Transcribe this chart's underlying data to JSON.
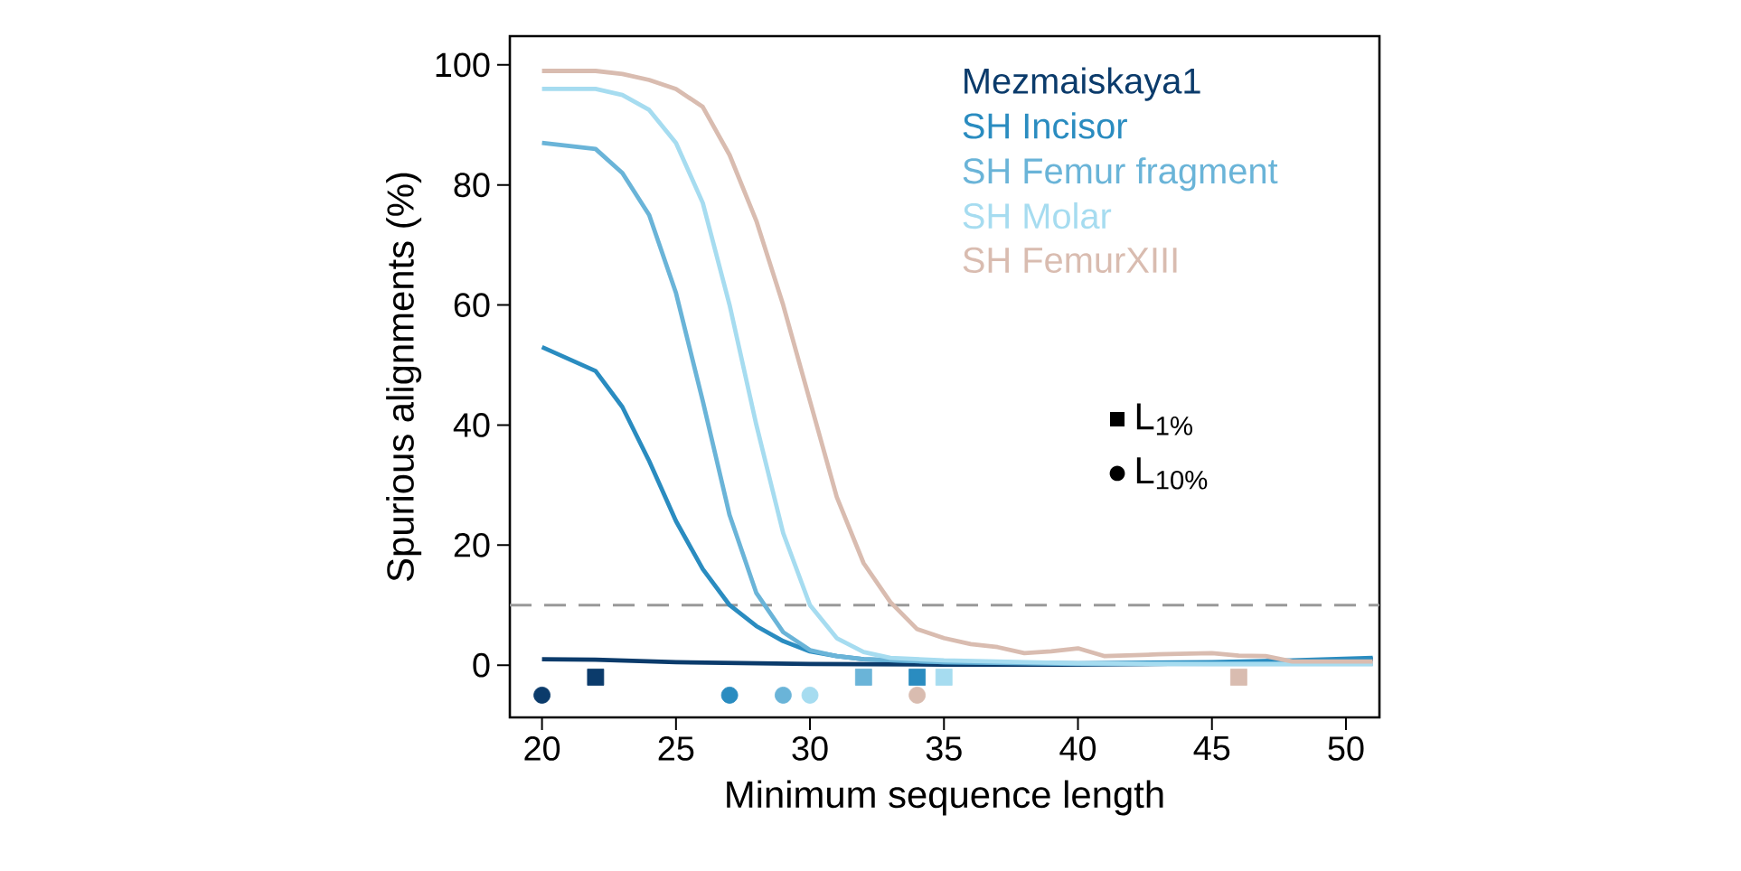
{
  "chart_data": {
    "type": "line",
    "xlabel": "Minimum sequence length",
    "ylabel": "Spurious alignments (%)",
    "xlim": [
      18.8,
      51.25
    ],
    "ylim": [
      -8.7,
      104.8
    ],
    "xticks": [
      20,
      25,
      30,
      35,
      40,
      45,
      50
    ],
    "yticks": [
      0,
      20,
      40,
      60,
      80,
      100
    ],
    "grid": false,
    "legend": "top right",
    "annotations": [
      "L$_{1%}$",
      "L$_{10%}$"
    ],
    "ref_lines": [
      {
        "axis": "y",
        "value": 10,
        "color": "#999999",
        "line_style": "dashed"
      }
    ],
    "series": [
      {
        "name": "Mezmaiskaya1",
        "color": "#0b3b6b",
        "x": [
          20,
          22,
          25,
          30,
          35,
          40,
          45,
          48,
          51
        ],
        "values": [
          1,
          0.9,
          0.5,
          0.2,
          0.1,
          0.1,
          0.3,
          0.6,
          1.0
        ]
      },
      {
        "name": "SH Incisor",
        "color": "#2a8cc0",
        "x": [
          20,
          22,
          23,
          24,
          25,
          26,
          27,
          28,
          29,
          30,
          31,
          32,
          35,
          40,
          45,
          48,
          51
        ],
        "values": [
          53,
          49,
          43,
          34,
          24,
          16,
          10,
          6.5,
          4,
          2.3,
          1.5,
          1,
          0.5,
          0.3,
          0.5,
          0.8,
          1.2
        ]
      },
      {
        "name": "SH Femur fragment",
        "color": "#6ab4d8",
        "x": [
          20,
          22,
          23,
          24,
          25,
          26,
          27,
          28,
          29,
          30,
          31,
          32,
          35,
          40,
          45,
          51
        ],
        "values": [
          87,
          86,
          82,
          75,
          62,
          44,
          25,
          12,
          5.5,
          2.5,
          1.5,
          1,
          0.5,
          0.2,
          0.2,
          0.2
        ]
      },
      {
        "name": "SH Molar",
        "color": "#a6dcf0",
        "x": [
          20,
          22,
          23,
          24,
          25,
          26,
          27,
          28,
          29,
          30,
          31,
          32,
          33,
          35,
          40,
          45,
          51
        ],
        "values": [
          96,
          96,
          95,
          92.5,
          87,
          77,
          60,
          40,
          22,
          10,
          4.5,
          2.2,
          1.2,
          0.8,
          0.3,
          0.2,
          0.2
        ]
      },
      {
        "name": "SH FemurXIII",
        "color": "#d9bcb0",
        "x": [
          20,
          22,
          23,
          24,
          25,
          26,
          27,
          28,
          29,
          30,
          31,
          32,
          33,
          34,
          35,
          36,
          37,
          38,
          39,
          40,
          41,
          43,
          45,
          46,
          47,
          48,
          51
        ],
        "values": [
          99,
          99,
          98.5,
          97.5,
          96,
          93,
          85,
          74,
          60,
          44,
          28,
          17,
          10.5,
          6,
          4.5,
          3.5,
          3,
          2,
          2.3,
          2.8,
          1.5,
          1.8,
          2,
          1.6,
          1.5,
          0.6,
          0.6
        ]
      },
      {
        "type": "scatter",
        "marker": "square",
        "x": [
          22,
          34,
          32,
          35,
          46
        ],
        "values": [
          -2,
          -2,
          -2,
          -2,
          -2
        ],
        "colors": [
          "#0b3b6b",
          "#2a8cc0",
          "#6ab4d8",
          "#a6dcf0",
          "#d9bcb0"
        ]
      },
      {
        "type": "scatter",
        "marker": "circle",
        "x": [
          20,
          27,
          29,
          30,
          34
        ],
        "values": [
          -5,
          -5,
          -5,
          -5,
          -5
        ],
        "colors": [
          "#0b3b6b",
          "#2a8cc0",
          "#6ab4d8",
          "#a6dcf0",
          "#d9bcb0"
        ]
      }
    ]
  }
}
